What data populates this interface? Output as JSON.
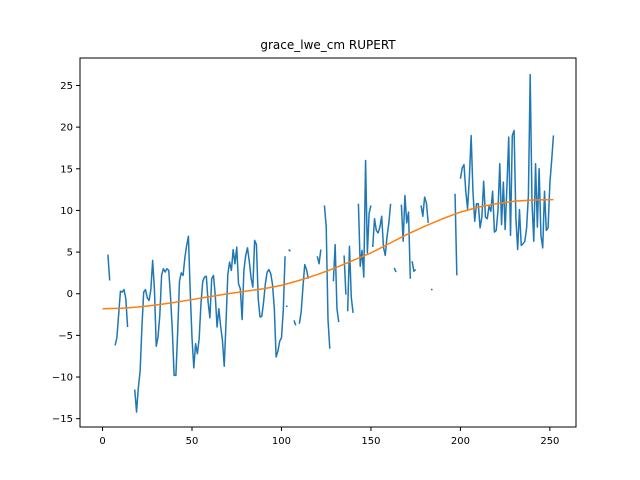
{
  "chart_data": {
    "type": "line",
    "title": "grace_lwe_cm RUPERT",
    "xlabel": "",
    "ylabel": "",
    "xlim": [
      -12.6,
      264.6
    ],
    "ylim": [
      -16,
      28.3
    ],
    "xticks": [
      0,
      50,
      100,
      150,
      200,
      250
    ],
    "yticks": [
      -15,
      -10,
      -5,
      0,
      5,
      10,
      15,
      20,
      25
    ],
    "grid": false,
    "legend": "none",
    "series": [
      {
        "color": "#1f77b4",
        "segments": [
          [
            [
              3,
              4.7
            ],
            [
              4,
              1.6
            ]
          ],
          [
            [
              7,
              -6.2
            ],
            [
              8,
              -5.3
            ],
            [
              9,
              -2.5
            ],
            [
              10,
              0.3
            ],
            [
              11,
              0.2
            ],
            [
              12,
              0.5
            ],
            [
              13,
              -0.6
            ],
            [
              14,
              -4.0
            ]
          ],
          [
            [
              18,
              -11.5
            ],
            [
              19,
              -14.2
            ],
            [
              20,
              -11.3
            ],
            [
              21,
              -9.3
            ],
            [
              22,
              -4.0
            ],
            [
              23,
              0.2
            ],
            [
              24,
              0.5
            ],
            [
              25,
              -0.5
            ],
            [
              26,
              -0.8
            ],
            [
              27,
              0.5
            ],
            [
              28,
              4.0
            ],
            [
              29,
              0.5
            ],
            [
              30,
              -6.3
            ],
            [
              31,
              -5.2
            ],
            [
              32,
              -2.6
            ],
            [
              33,
              2.2
            ],
            [
              34,
              3.0
            ],
            [
              35,
              2.6
            ],
            [
              36,
              3.0
            ],
            [
              37,
              2.8
            ],
            [
              38,
              -0.4
            ],
            [
              39,
              -4.4
            ],
            [
              40,
              -9.8
            ],
            [
              41,
              -9.8
            ],
            [
              42,
              -4.5
            ],
            [
              43,
              1.5
            ],
            [
              44,
              2.5
            ],
            [
              45,
              2.2
            ],
            [
              46,
              4.3
            ],
            [
              47,
              5.8
            ],
            [
              48,
              6.9
            ],
            [
              49,
              0.2
            ],
            [
              50,
              -5.3
            ],
            [
              51,
              -8.9
            ],
            [
              52,
              -6.0
            ],
            [
              53,
              -7.2
            ],
            [
              54,
              -5.4
            ],
            [
              55,
              -1.2
            ],
            [
              56,
              1.5
            ],
            [
              57,
              2.0
            ],
            [
              58,
              2.1
            ],
            [
              59,
              -1.0
            ],
            [
              60,
              -2.9
            ],
            [
              61,
              1.8
            ],
            [
              62,
              2.2
            ],
            [
              63,
              -0.2
            ],
            [
              64,
              -4.0
            ],
            [
              65,
              -1.8
            ],
            [
              66,
              -3.9
            ],
            [
              67,
              -5.6
            ],
            [
              68,
              -8.7
            ],
            [
              69,
              -3.5
            ],
            [
              70,
              2.3
            ],
            [
              71,
              3.8
            ],
            [
              72,
              2.8
            ],
            [
              73,
              5.3
            ],
            [
              74,
              3.6
            ],
            [
              75,
              5.6
            ],
            [
              76,
              1.2
            ],
            [
              77,
              0.6
            ],
            [
              78,
              -3.1
            ],
            [
              79,
              2.8
            ],
            [
              80,
              4.6
            ],
            [
              81,
              5.5
            ],
            [
              82,
              3.9
            ],
            [
              83,
              1.9
            ],
            [
              84,
              0.8
            ],
            [
              85,
              6.4
            ],
            [
              86,
              5.9
            ],
            [
              87,
              -0.6
            ],
            [
              88,
              -2.8
            ],
            [
              89,
              -2.7
            ],
            [
              90,
              -1.0
            ],
            [
              91,
              1.2
            ],
            [
              92,
              2.6
            ],
            [
              93,
              2.9
            ],
            [
              94,
              2.4
            ],
            [
              95,
              1.1
            ],
            [
              96,
              -1.8
            ],
            [
              97,
              -7.6
            ],
            [
              98,
              -6.9
            ],
            [
              99,
              -5.7
            ],
            [
              100,
              -5.3
            ],
            [
              101,
              -2.0
            ],
            [
              102,
              4.5
            ]
          ],
          [
            [
              103,
              -1.5
            ]
          ],
          [
            [
              104,
              5.3
            ],
            [
              105,
              5.1
            ]
          ],
          [
            [
              107,
              -3.2
            ],
            [
              108,
              -3.8
            ]
          ],
          [
            [
              110,
              -3.6
            ],
            [
              111,
              -2.2
            ],
            [
              112,
              0.8
            ],
            [
              113,
              3.5
            ],
            [
              114,
              2.9
            ],
            [
              115,
              1.8
            ]
          ],
          [
            [
              120,
              4.5
            ],
            [
              121,
              3.6
            ],
            [
              122,
              5.3
            ]
          ],
          [
            [
              124,
              10.6
            ],
            [
              125,
              8.1
            ],
            [
              126,
              -3.1
            ],
            [
              127,
              -6.6
            ]
          ],
          [
            [
              129,
              1.5
            ],
            [
              130,
              5.9
            ],
            [
              131,
              -1.8
            ],
            [
              132,
              -3.4
            ]
          ],
          [
            [
              135,
              4.6
            ],
            [
              136,
              -0.1
            ]
          ],
          [
            [
              137,
              -2.1
            ],
            [
              138,
              5.7
            ],
            [
              139,
              -0.4
            ],
            [
              140,
              -2.3
            ]
          ],
          [
            [
              143,
              10.8
            ],
            [
              144,
              3.3
            ],
            [
              145,
              5.2
            ],
            [
              146,
              2.0
            ],
            [
              147,
              16.0
            ],
            [
              148,
              4.9
            ],
            [
              149,
              9.7
            ],
            [
              150,
              10.6
            ]
          ],
          [
            [
              151,
              5.6
            ],
            [
              152,
              9.0
            ],
            [
              153,
              7.6
            ],
            [
              154,
              7.3
            ],
            [
              155,
              8.0
            ],
            [
              156,
              9.3
            ],
            [
              157,
              5.6
            ],
            [
              158,
              4.6
            ],
            [
              159,
              6.9
            ],
            [
              160,
              8.5
            ],
            [
              161,
              10.8
            ]
          ],
          [
            [
              163,
              3.1
            ],
            [
              164,
              2.6
            ]
          ],
          [
            [
              167,
              10.7
            ],
            [
              168,
              6.3
            ],
            [
              169,
              11.8
            ],
            [
              170,
              8.5
            ],
            [
              171,
              9.8
            ],
            [
              172,
              1.8
            ]
          ],
          [
            [
              173,
              3.9
            ],
            [
              174,
              2.7
            ],
            [
              175,
              2.9
            ]
          ],
          [
            [
              178,
              10.6
            ],
            [
              179,
              9.3
            ],
            [
              180,
              11.6
            ],
            [
              181,
              10.9
            ],
            [
              182,
              8.5
            ]
          ],
          [
            [
              184,
              0.5
            ]
          ],
          [
            [
              197,
              12.0
            ],
            [
              198,
              2.2
            ]
          ],
          [
            [
              200,
              13.8
            ],
            [
              201,
              15.1
            ],
            [
              202,
              15.5
            ],
            [
              203,
              12.3
            ],
            [
              204,
              10.2
            ],
            [
              205,
              13.9
            ],
            [
              206,
              19.0
            ],
            [
              207,
              12.3
            ],
            [
              208,
              8.7
            ],
            [
              209,
              10.8
            ],
            [
              210,
              10.8
            ],
            [
              211,
              7.9
            ],
            [
              212,
              9.2
            ],
            [
              213,
              13.5
            ],
            [
              214,
              9.2
            ],
            [
              215,
              9.0
            ],
            [
              216,
              10.5
            ],
            [
              217,
              9.9
            ],
            [
              218,
              12.3
            ],
            [
              219,
              7.4
            ],
            [
              220,
              7.6
            ],
            [
              221,
              10.0
            ],
            [
              222,
              15.6
            ],
            [
              223,
              8.3
            ],
            [
              224,
              13.4
            ],
            [
              225,
              7.7
            ],
            [
              226,
              12.9
            ],
            [
              227,
              18.8
            ],
            [
              228,
              7.0
            ],
            [
              229,
              19.0
            ],
            [
              230,
              19.6
            ],
            [
              231,
              9.1
            ],
            [
              232,
              5.3
            ],
            [
              233,
              10.1
            ],
            [
              234,
              5.8
            ],
            [
              235,
              6.0
            ],
            [
              236,
              6.3
            ],
            [
              237,
              7.9
            ],
            [
              238,
              11.8
            ],
            [
              239,
              26.3
            ],
            [
              240,
              11.0
            ],
            [
              241,
              6.3
            ],
            [
              242,
              15.6
            ],
            [
              243,
              8.0
            ],
            [
              244,
              15.0
            ],
            [
              245,
              7.0
            ],
            [
              246,
              5.5
            ],
            [
              247,
              12.3
            ],
            [
              248,
              7.6
            ],
            [
              249,
              7.9
            ],
            [
              250,
              13.3
            ],
            [
              251,
              16.0
            ],
            [
              252,
              19.0
            ]
          ]
        ]
      },
      {
        "color": "#ff7f0e",
        "points": [
          [
            0,
            -1.8
          ],
          [
            10,
            -1.75
          ],
          [
            20,
            -1.6
          ],
          [
            30,
            -1.35
          ],
          [
            40,
            -1.05
          ],
          [
            50,
            -0.7
          ],
          [
            60,
            -0.35
          ],
          [
            70,
            0.0
          ],
          [
            80,
            0.3
          ],
          [
            90,
            0.6
          ],
          [
            100,
            1.0
          ],
          [
            110,
            1.6
          ],
          [
            120,
            2.3
          ],
          [
            130,
            3.1
          ],
          [
            140,
            4.0
          ],
          [
            150,
            4.9
          ],
          [
            160,
            6.0
          ],
          [
            170,
            7.1
          ],
          [
            180,
            8.1
          ],
          [
            190,
            9.0
          ],
          [
            200,
            9.8
          ],
          [
            210,
            10.4
          ],
          [
            220,
            10.8
          ],
          [
            230,
            11.1
          ],
          [
            240,
            11.25
          ],
          [
            252,
            11.3
          ]
        ]
      }
    ]
  }
}
